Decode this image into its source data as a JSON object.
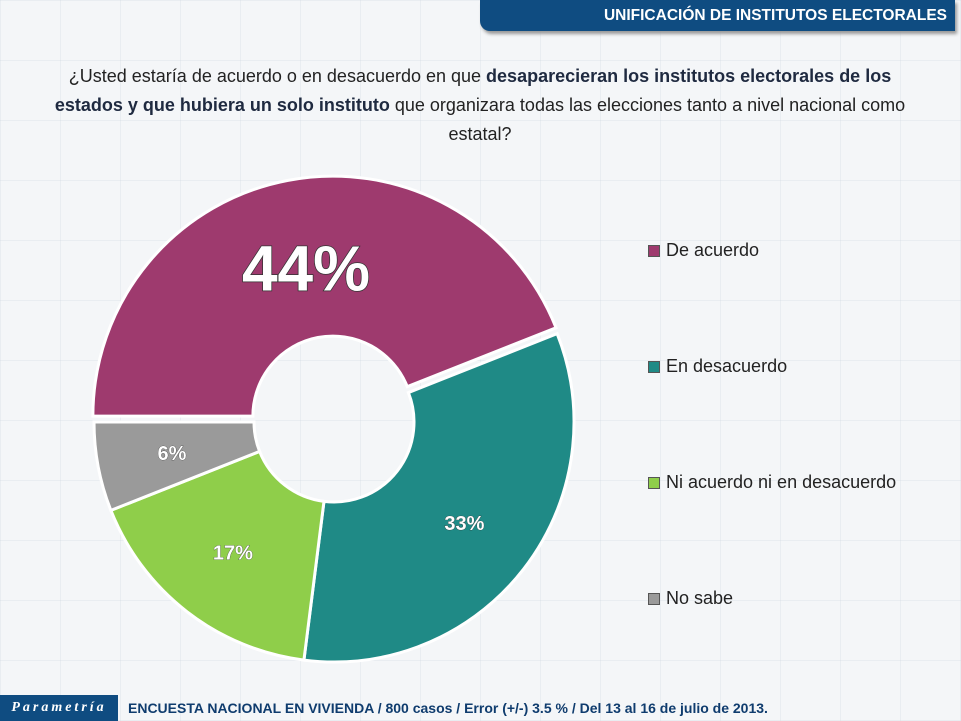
{
  "header": {
    "title": "UNIFICACIÓN DE INSTITUTOS ELECTORALES"
  },
  "question": {
    "part1": "¿Usted estaría de acuerdo o en desacuerdo en que ",
    "bold1": "desaparecieran los institutos electorales de los estados y que hubiera un solo instituto",
    "part2": " que organizara todas las elecciones tanto a nivel nacional como estatal?"
  },
  "chart_data": {
    "type": "pie",
    "donut": true,
    "categories": [
      "De acuerdo",
      "En desacuerdo",
      "Ni acuerdo ni en desacuerdo",
      "No sabe"
    ],
    "values": [
      44,
      33,
      17,
      6
    ],
    "labels": [
      "44%",
      "33%",
      "17%",
      "6%"
    ],
    "colors": [
      "#9e3a6e",
      "#1f8a86",
      "#8fce4a",
      "#9a9a9a"
    ],
    "legend": "right"
  },
  "footer": {
    "logo": "Parametría",
    "text": "ENCUESTA NACIONAL EN VIVIENDA / 800 casos / Error (+/-) 3.5 % / Del 13 al 16 de julio de 2013."
  }
}
